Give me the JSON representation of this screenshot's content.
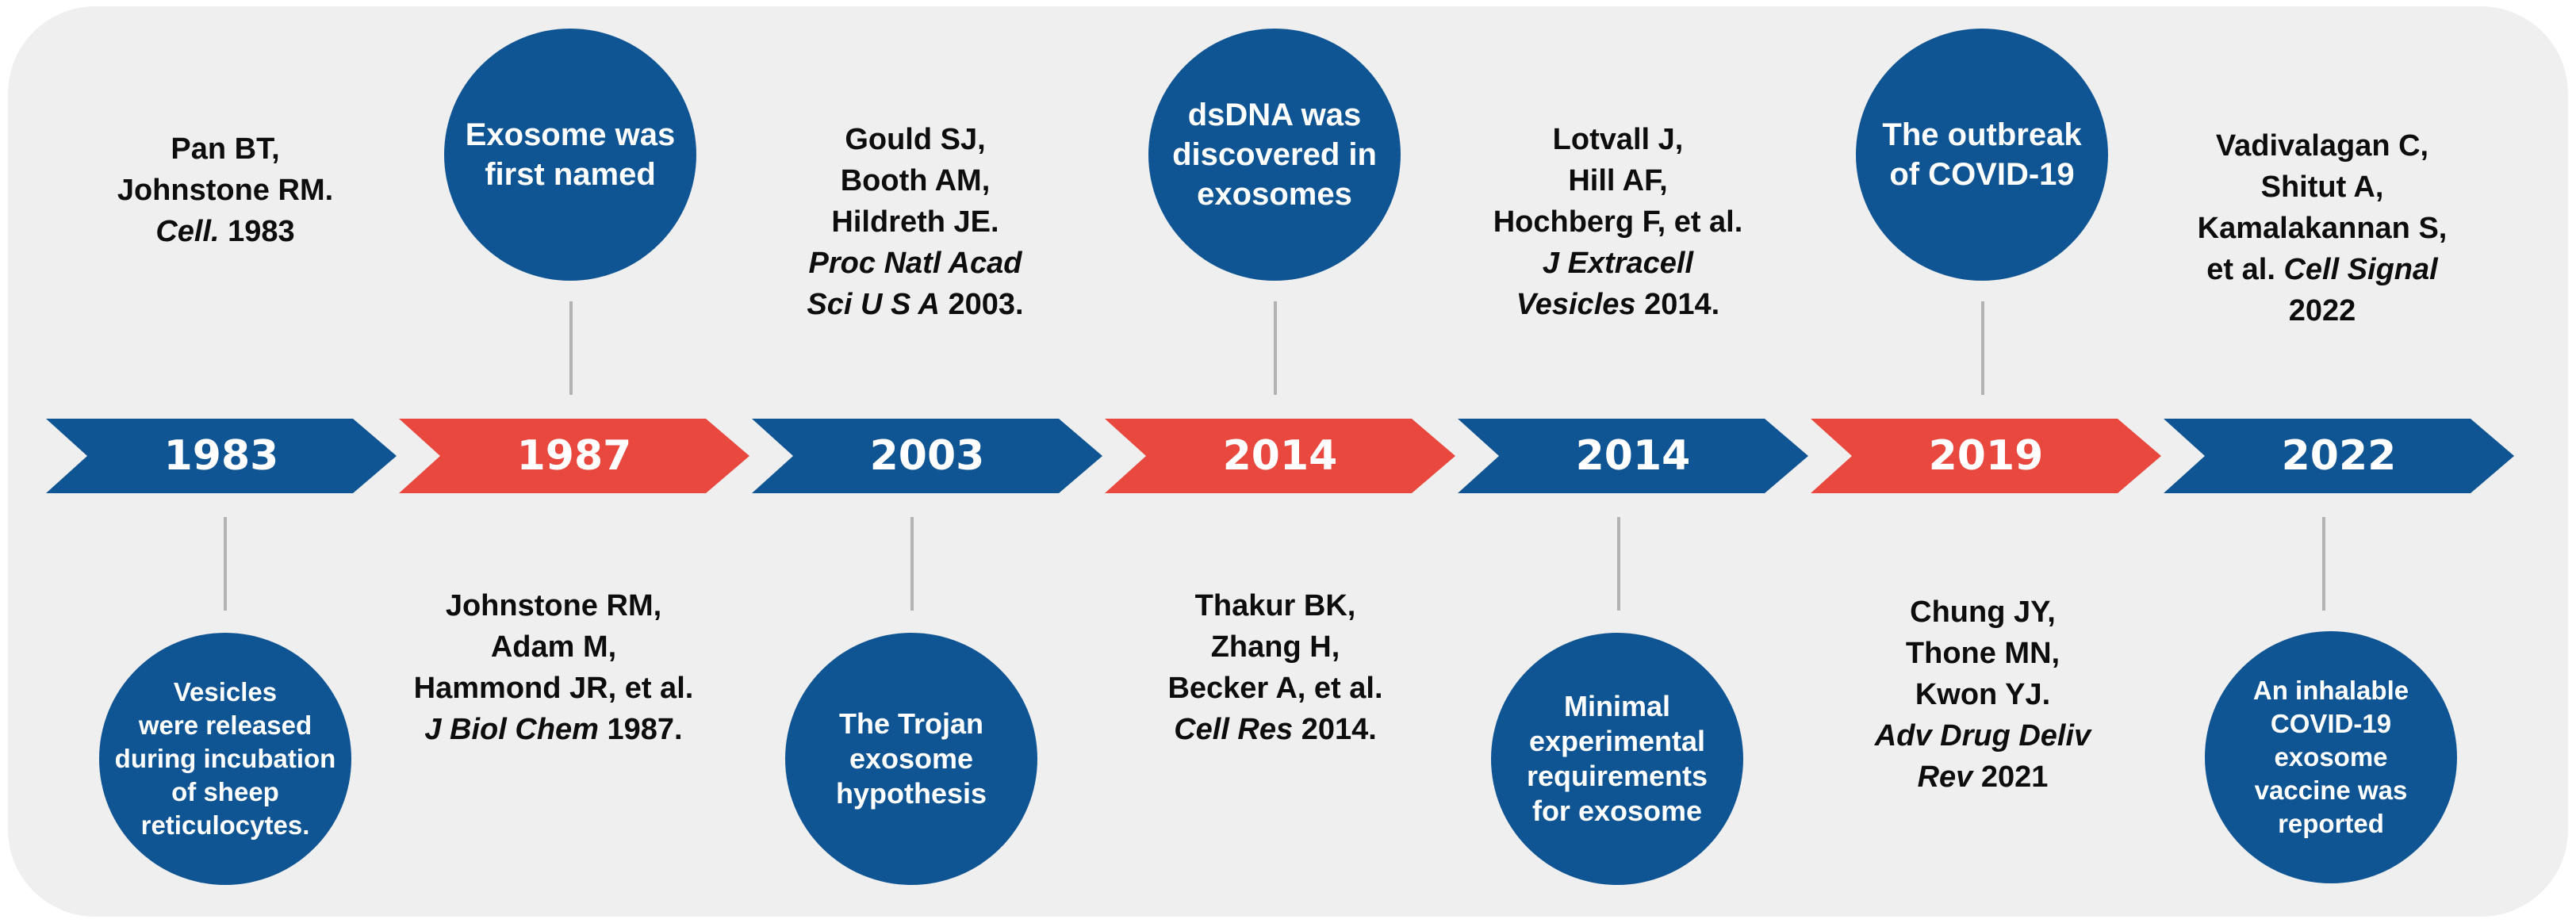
{
  "colors": {
    "blue": "#0f5493",
    "red": "#e8483e",
    "panel": "#efefef"
  },
  "events": [
    {
      "year": "1983",
      "color": "blue",
      "reference": [
        "Pan BT,",
        "Johnstone RM.",
        "Cell. 1983"
      ],
      "event": [
        "Vesicles",
        "were released",
        "during incubation",
        "of sheep",
        "reticulocytes."
      ]
    },
    {
      "year": "1987",
      "color": "red",
      "event": [
        "Exosome was",
        "first named"
      ],
      "reference": [
        "Johnstone RM,",
        "Adam M,",
        "Hammond JR, et al.",
        "J Biol Chem 1987."
      ]
    },
    {
      "year": "2003",
      "color": "blue",
      "reference": [
        "Gould SJ,",
        "Booth AM,",
        "Hildreth JE.",
        "Proc Natl Acad",
        "Sci U S A 2003."
      ],
      "event": [
        "The Trojan",
        "exosome",
        "hypothesis"
      ]
    },
    {
      "year": "2014",
      "color": "red",
      "event": [
        "dsDNA was",
        "discovered in",
        "exosomes"
      ],
      "reference": [
        "Thakur BK,",
        "Zhang H,",
        "Becker A, et al.",
        "Cell Res 2014."
      ]
    },
    {
      "year": "2014",
      "color": "blue",
      "reference": [
        "Lotvall J,",
        "Hill AF,",
        "Hochberg F, et al.",
        "J Extracell",
        "Vesicles 2014."
      ],
      "event": [
        "Minimal",
        "experimental",
        "requirements",
        "for exosome"
      ]
    },
    {
      "year": "2019",
      "color": "red",
      "event": [
        "The outbreak",
        "of COVID-19"
      ],
      "reference": [
        "Chung JY,",
        "Thone MN,",
        "Kwon YJ.",
        "Adv Drug Deliv",
        "Rev 2021"
      ]
    },
    {
      "year": "2022",
      "color": "blue",
      "reference": [
        "Vadivalagan C,",
        "Shitut A,",
        "Kamalakannan S,",
        "et al. Cell Signal",
        "2022"
      ],
      "event": [
        "An inhalable",
        "COVID-19",
        "exosome",
        "vaccine was",
        "reported"
      ]
    }
  ]
}
